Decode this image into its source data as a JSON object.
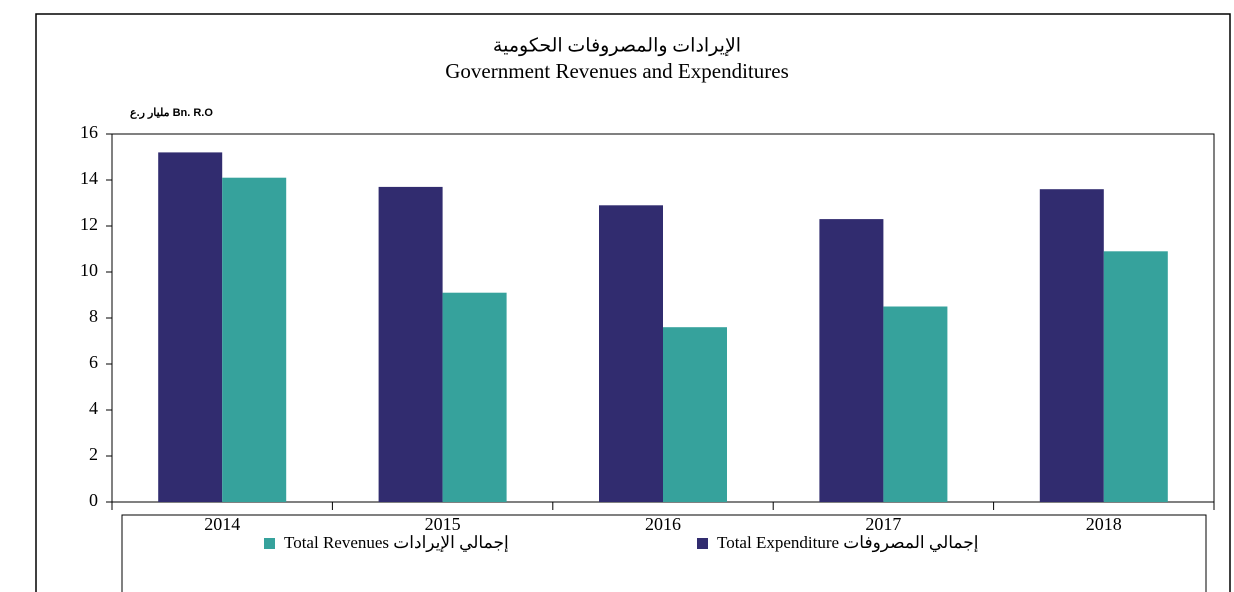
{
  "chart_data": {
    "type": "bar",
    "title": "الإيرادات والمصروفات الحكومية",
    "subtitle": "Government Revenues and Expenditures",
    "y_unit_label": "مليار ر.ع Bn. R.O",
    "categories": [
      "2014",
      "2015",
      "2016",
      "2017",
      "2018"
    ],
    "series": [
      {
        "name": "Total Expenditure إجمالي المصروفات",
        "color": "#312c6f",
        "values": [
          15.2,
          13.7,
          12.9,
          12.3,
          13.6
        ]
      },
      {
        "name": "Total Revenues إجمالي الإيرادات",
        "color": "#36a29c",
        "values": [
          14.1,
          9.1,
          7.6,
          8.5,
          10.9
        ]
      }
    ],
    "ylim": [
      0,
      16
    ],
    "yticks": [
      0,
      2,
      4,
      6,
      8,
      10,
      12,
      14,
      16
    ],
    "grid": false,
    "legend": "bottom"
  }
}
